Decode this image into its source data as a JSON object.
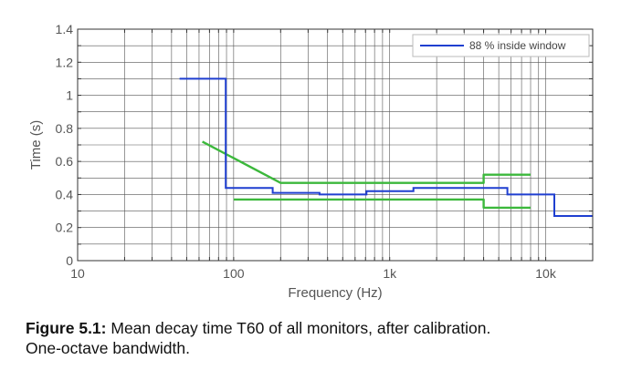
{
  "chart_data": {
    "type": "line",
    "xscale": "log",
    "xlim": [
      10,
      20000
    ],
    "ylim": [
      0,
      1.4
    ],
    "xlabel": "Frequency (Hz)",
    "ylabel": "Time (s)",
    "x_ticks": [
      10,
      100,
      1000,
      10000
    ],
    "x_tick_labels": [
      "10",
      "100",
      "1k",
      "10k"
    ],
    "y_ticks": [
      0,
      0.2,
      0.4,
      0.6,
      0.8,
      1,
      1.2,
      1.4
    ],
    "y_tick_labels": [
      "0",
      "0.2",
      "0.4",
      "0.6",
      "0.8",
      "1",
      "1.2",
      "1.4"
    ],
    "grid": true,
    "legend_position": "top-right",
    "series": [
      {
        "name": "88 % inside window",
        "color": "#1f3fd0",
        "style": "step",
        "x": [
          45,
          89,
          89,
          178,
          178,
          355,
          355,
          710,
          710,
          1420,
          1420,
          2840,
          2840,
          5680,
          5680,
          11360,
          11360,
          20000
        ],
        "y": [
          1.1,
          1.1,
          0.44,
          0.44,
          0.41,
          0.41,
          0.4,
          0.4,
          0.42,
          0.42,
          0.44,
          0.44,
          0.44,
          0.44,
          0.4,
          0.4,
          0.27,
          0.27
        ]
      }
    ],
    "limits": {
      "color": "#3cb83c",
      "lines": [
        {
          "x": [
            63,
            200,
            4000,
            4000,
            8000
          ],
          "y": [
            0.72,
            0.47,
            0.47,
            0.52,
            0.52
          ]
        },
        {
          "x": [
            100,
            4000,
            4000,
            8000
          ],
          "y": [
            0.37,
            0.37,
            0.32,
            0.32
          ]
        }
      ]
    }
  },
  "caption": {
    "label": "Figure 5.1:",
    "line1": "Mean decay time T60 of all monitors, after calibration.",
    "line2": "One-octave bandwidth."
  }
}
